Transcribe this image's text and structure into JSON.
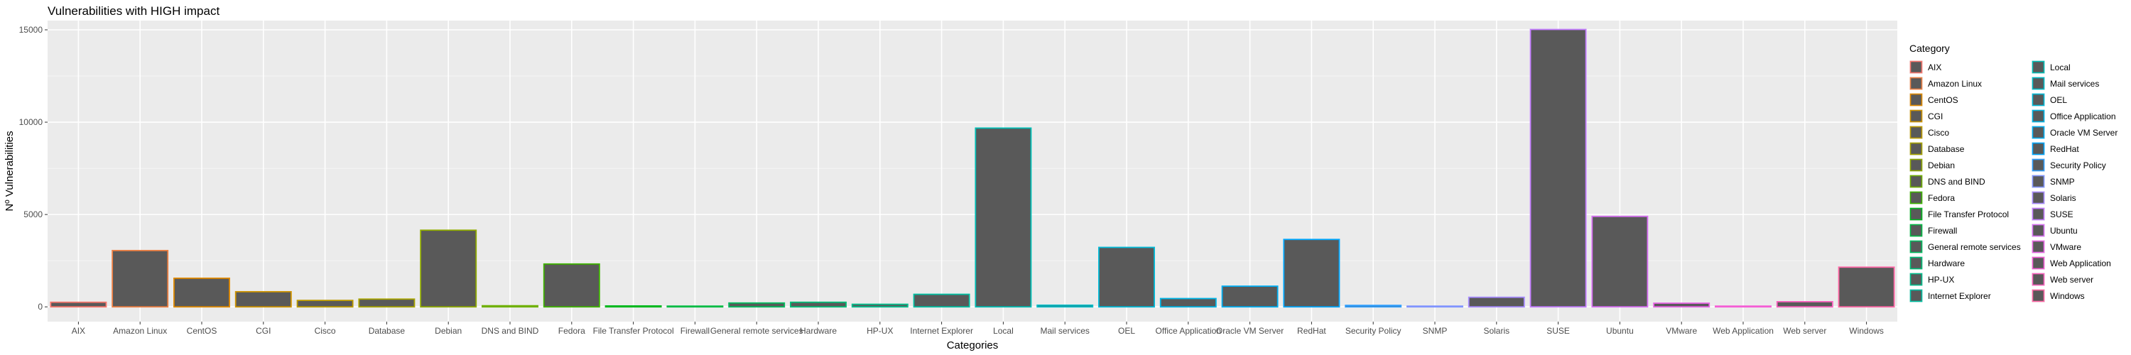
{
  "chart_data": {
    "type": "bar",
    "title": "Vulnerabilities with HIGH impact",
    "xlabel": "Categories",
    "ylabel": "Nº Vulnerabilities",
    "ylim": [
      -800,
      15500
    ],
    "yticks": [
      0,
      5000,
      10000,
      15000
    ],
    "yticklabels": [
      "0",
      "5000",
      "10000",
      "15000"
    ],
    "grid": true,
    "legend_title": "Category",
    "legend_position": "right",
    "fill_color": "#595959",
    "panel_bg": "#ebebeb",
    "categories": [
      "AIX",
      "Amazon Linux",
      "CentOS",
      "CGI",
      "Cisco",
      "Database",
      "Debian",
      "DNS and BIND",
      "Fedora",
      "File Transfer Protocol",
      "Firewall",
      "General remote services",
      "Hardware",
      "HP-UX",
      "Internet Explorer",
      "Local",
      "Mail services",
      "OEL",
      "Office Application",
      "Oracle VM Server",
      "RedHat",
      "Security Policy",
      "SNMP",
      "Solaris",
      "SUSE",
      "Ubuntu",
      "VMware",
      "Web Application",
      "Web server",
      "Windows"
    ],
    "values": [
      250,
      3050,
      1550,
      820,
      350,
      420,
      4150,
      60,
      2320,
      50,
      40,
      210,
      250,
      140,
      680,
      9680,
      90,
      3220,
      450,
      1120,
      3650,
      80,
      40,
      520,
      15020,
      4900,
      200,
      40,
      280,
      2150
    ],
    "outline_colors": [
      "#F8766D",
      "#EE8043",
      "#E18A00",
      "#CF9400",
      "#BE9C00",
      "#A8A400",
      "#8FAA00",
      "#6FB000",
      "#3EB400",
      "#00B81F",
      "#00BB44",
      "#00BD5F",
      "#00BF77",
      "#00C08E",
      "#00C0A3",
      "#00BFB6",
      "#00BDC8",
      "#00BAD8",
      "#00B5E6",
      "#00AFF3",
      "#00A7FD",
      "#2E9FFF",
      "#8195FF",
      "#A78BFF",
      "#C47DFF",
      "#D970F5",
      "#E966E6",
      "#F45ED5",
      "#FB61BE",
      "#FE68A6"
    ]
  }
}
